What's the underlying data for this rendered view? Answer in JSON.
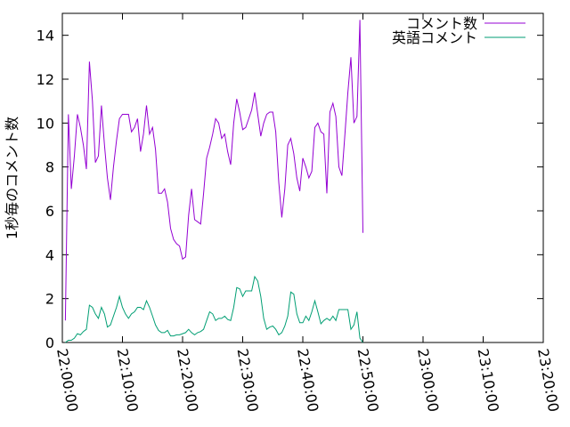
{
  "chart_data": {
    "type": "line",
    "title": "",
    "xlabel": "",
    "ylabel": "1秒毎のコメント数",
    "x_unit": "minutes since 22:00:00",
    "xlim": [
      0,
      80
    ],
    "ylim": [
      0,
      15
    ],
    "x_ticks": [
      {
        "value": 0,
        "label": "22:00:00"
      },
      {
        "value": 10,
        "label": "22:10:00"
      },
      {
        "value": 20,
        "label": "22:20:00"
      },
      {
        "value": 30,
        "label": "22:30:00"
      },
      {
        "value": 40,
        "label": "22:40:00"
      },
      {
        "value": 50,
        "label": "22:50:00"
      },
      {
        "value": 60,
        "label": "23:00:00"
      },
      {
        "value": 70,
        "label": "23:10:00"
      },
      {
        "value": 80,
        "label": "23:20:00"
      }
    ],
    "y_ticks": [
      {
        "value": 0,
        "label": "0"
      },
      {
        "value": 2,
        "label": "2"
      },
      {
        "value": 4,
        "label": "4"
      },
      {
        "value": 6,
        "label": "6"
      },
      {
        "value": 8,
        "label": "8"
      },
      {
        "value": 10,
        "label": "10"
      },
      {
        "value": 12,
        "label": "12"
      },
      {
        "value": 14,
        "label": "14"
      }
    ],
    "grid": false,
    "legend_position": "top-right",
    "series": [
      {
        "name": "コメント数",
        "color": "#9400d3",
        "points": [
          [
            0.5,
            1.0
          ],
          [
            1.0,
            10.4
          ],
          [
            1.5,
            7.0
          ],
          [
            2.0,
            8.5
          ],
          [
            2.5,
            10.4
          ],
          [
            3.0,
            9.8
          ],
          [
            3.5,
            9.0
          ],
          [
            4.0,
            7.9
          ],
          [
            4.5,
            12.8
          ],
          [
            5.0,
            11.0
          ],
          [
            5.5,
            8.2
          ],
          [
            6.0,
            8.5
          ],
          [
            6.5,
            10.8
          ],
          [
            7.0,
            9.0
          ],
          [
            7.5,
            7.5
          ],
          [
            8.0,
            6.5
          ],
          [
            8.5,
            8.0
          ],
          [
            9.0,
            9.2
          ],
          [
            9.5,
            10.2
          ],
          [
            10.0,
            10.4
          ],
          [
            11.0,
            10.4
          ],
          [
            11.5,
            9.6
          ],
          [
            12.0,
            9.8
          ],
          [
            12.5,
            10.2
          ],
          [
            13.0,
            8.7
          ],
          [
            13.5,
            9.5
          ],
          [
            14.0,
            10.8
          ],
          [
            14.5,
            9.5
          ],
          [
            15.0,
            9.8
          ],
          [
            15.5,
            8.8
          ],
          [
            16.0,
            6.8
          ],
          [
            16.5,
            6.8
          ],
          [
            17.0,
            7.0
          ],
          [
            17.5,
            6.4
          ],
          [
            18.0,
            5.2
          ],
          [
            18.5,
            4.7
          ],
          [
            19.0,
            4.5
          ],
          [
            19.5,
            4.4
          ],
          [
            20.0,
            3.8
          ],
          [
            20.5,
            3.9
          ],
          [
            21.0,
            5.8
          ],
          [
            21.5,
            7.0
          ],
          [
            22.0,
            5.6
          ],
          [
            22.5,
            5.5
          ],
          [
            23.0,
            5.4
          ],
          [
            23.5,
            6.8
          ],
          [
            24.0,
            8.4
          ],
          [
            24.5,
            8.9
          ],
          [
            25.0,
            9.5
          ],
          [
            25.5,
            10.2
          ],
          [
            26.0,
            10.0
          ],
          [
            26.5,
            9.3
          ],
          [
            27.0,
            9.5
          ],
          [
            27.5,
            8.7
          ],
          [
            28.0,
            8.1
          ],
          [
            28.5,
            10.0
          ],
          [
            29.0,
            11.1
          ],
          [
            29.5,
            10.5
          ],
          [
            30.0,
            9.7
          ],
          [
            30.5,
            9.8
          ],
          [
            31.0,
            10.2
          ],
          [
            31.5,
            10.6
          ],
          [
            32.0,
            11.4
          ],
          [
            32.5,
            10.4
          ],
          [
            33.0,
            9.4
          ],
          [
            33.5,
            10.0
          ],
          [
            34.0,
            10.4
          ],
          [
            34.5,
            10.5
          ],
          [
            35.0,
            10.5
          ],
          [
            35.5,
            9.6
          ],
          [
            36.0,
            7.3
          ],
          [
            36.5,
            5.7
          ],
          [
            37.0,
            7.0
          ],
          [
            37.5,
            9.0
          ],
          [
            38.0,
            9.3
          ],
          [
            38.5,
            8.6
          ],
          [
            39.0,
            7.5
          ],
          [
            39.5,
            6.9
          ],
          [
            40.0,
            8.4
          ],
          [
            40.5,
            8.0
          ],
          [
            41.0,
            7.5
          ],
          [
            41.5,
            7.8
          ],
          [
            42.0,
            9.8
          ],
          [
            42.5,
            10.0
          ],
          [
            43.0,
            9.6
          ],
          [
            43.5,
            9.5
          ],
          [
            44.0,
            6.8
          ],
          [
            44.5,
            10.5
          ],
          [
            45.0,
            10.9
          ],
          [
            45.5,
            10.3
          ],
          [
            46.0,
            8.0
          ],
          [
            46.5,
            7.6
          ],
          [
            47.0,
            9.5
          ],
          [
            47.5,
            11.4
          ],
          [
            48.0,
            13.0
          ],
          [
            48.5,
            10.0
          ],
          [
            49.0,
            10.3
          ],
          [
            49.5,
            14.7
          ],
          [
            50.0,
            5.0
          ]
        ]
      },
      {
        "name": "英語コメント",
        "color": "#009e73",
        "points": [
          [
            0.5,
            0.0
          ],
          [
            1.0,
            0.1
          ],
          [
            1.5,
            0.1
          ],
          [
            2.0,
            0.2
          ],
          [
            2.5,
            0.4
          ],
          [
            3.0,
            0.35
          ],
          [
            3.5,
            0.5
          ],
          [
            4.0,
            0.6
          ],
          [
            4.5,
            1.7
          ],
          [
            5.0,
            1.6
          ],
          [
            5.5,
            1.3
          ],
          [
            6.0,
            1.1
          ],
          [
            6.5,
            1.6
          ],
          [
            7.0,
            1.3
          ],
          [
            7.5,
            0.7
          ],
          [
            8.0,
            0.8
          ],
          [
            8.5,
            1.2
          ],
          [
            9.0,
            1.6
          ],
          [
            9.5,
            2.1
          ],
          [
            10.0,
            1.6
          ],
          [
            10.5,
            1.3
          ],
          [
            11.0,
            1.1
          ],
          [
            11.5,
            1.3
          ],
          [
            12.0,
            1.4
          ],
          [
            12.5,
            1.6
          ],
          [
            13.0,
            1.6
          ],
          [
            13.5,
            1.5
          ],
          [
            14.0,
            1.9
          ],
          [
            14.5,
            1.6
          ],
          [
            15.0,
            1.2
          ],
          [
            15.5,
            0.8
          ],
          [
            16.0,
            0.55
          ],
          [
            16.5,
            0.45
          ],
          [
            17.0,
            0.45
          ],
          [
            17.5,
            0.55
          ],
          [
            18.0,
            0.3
          ],
          [
            18.5,
            0.3
          ],
          [
            19.0,
            0.35
          ],
          [
            19.5,
            0.35
          ],
          [
            20.0,
            0.4
          ],
          [
            20.5,
            0.45
          ],
          [
            21.0,
            0.6
          ],
          [
            21.5,
            0.45
          ],
          [
            22.0,
            0.35
          ],
          [
            22.5,
            0.45
          ],
          [
            23.0,
            0.5
          ],
          [
            23.5,
            0.6
          ],
          [
            24.0,
            1.0
          ],
          [
            24.5,
            1.4
          ],
          [
            25.0,
            1.3
          ],
          [
            25.5,
            1.0
          ],
          [
            26.0,
            1.1
          ],
          [
            26.5,
            1.1
          ],
          [
            27.0,
            1.2
          ],
          [
            27.5,
            1.05
          ],
          [
            28.0,
            1.0
          ],
          [
            28.5,
            1.6
          ],
          [
            29.0,
            2.5
          ],
          [
            29.5,
            2.45
          ],
          [
            30.0,
            2.1
          ],
          [
            30.5,
            2.35
          ],
          [
            31.0,
            2.35
          ],
          [
            31.5,
            2.35
          ],
          [
            32.0,
            3.0
          ],
          [
            32.5,
            2.8
          ],
          [
            33.0,
            2.1
          ],
          [
            33.5,
            1.1
          ],
          [
            34.0,
            0.6
          ],
          [
            34.5,
            0.7
          ],
          [
            35.0,
            0.75
          ],
          [
            35.5,
            0.6
          ],
          [
            36.0,
            0.35
          ],
          [
            36.5,
            0.45
          ],
          [
            37.0,
            0.75
          ],
          [
            37.5,
            1.2
          ],
          [
            38.0,
            2.3
          ],
          [
            38.5,
            2.2
          ],
          [
            39.0,
            1.3
          ],
          [
            39.5,
            0.9
          ],
          [
            40.0,
            0.9
          ],
          [
            40.5,
            1.2
          ],
          [
            41.0,
            1.0
          ],
          [
            41.5,
            1.4
          ],
          [
            42.0,
            1.9
          ],
          [
            42.5,
            1.4
          ],
          [
            43.0,
            0.85
          ],
          [
            43.5,
            1.0
          ],
          [
            44.0,
            1.1
          ],
          [
            44.5,
            1.0
          ],
          [
            45.0,
            1.2
          ],
          [
            45.5,
            1.0
          ],
          [
            46.0,
            1.5
          ],
          [
            46.5,
            1.5
          ],
          [
            47.0,
            1.5
          ],
          [
            47.5,
            1.5
          ],
          [
            48.0,
            0.6
          ],
          [
            48.5,
            0.8
          ],
          [
            49.0,
            1.4
          ],
          [
            49.5,
            0.2
          ],
          [
            50.0,
            0.0
          ]
        ]
      }
    ]
  }
}
